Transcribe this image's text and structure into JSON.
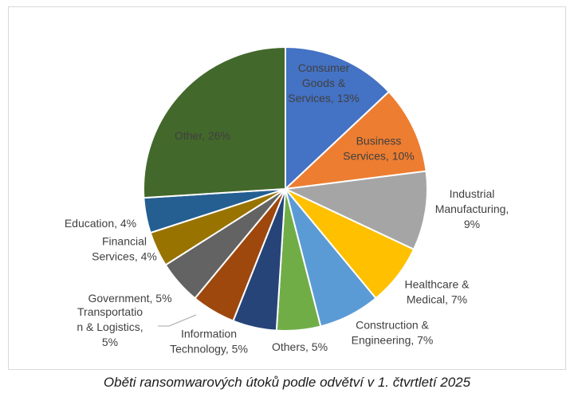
{
  "caption": "Oběti ransomwarových útoků podle odvětví v 1. čtvrtletí 2025",
  "chart_data": {
    "type": "pie",
    "title": "",
    "slices": [
      {
        "name": "Consumer Goods & Services",
        "value": 13,
        "color": "#4472C4",
        "label_lines": [
          "Consumer",
          "Goods &",
          "Services, 13%"
        ]
      },
      {
        "name": "Business Services",
        "value": 10,
        "color": "#ED7D31",
        "label_lines": [
          "Business",
          "Services, 10%"
        ]
      },
      {
        "name": "Industrial Manufacturing",
        "value": 9,
        "color": "#A5A5A5",
        "label_lines": [
          "Industrial",
          "Manufacturing,",
          "9%"
        ]
      },
      {
        "name": "Healthcare & Medical",
        "value": 7,
        "color": "#FFC000",
        "label_lines": [
          "Healthcare &",
          "Medical, 7%"
        ]
      },
      {
        "name": "Construction & Engineering",
        "value": 7,
        "color": "#5B9BD5",
        "label_lines": [
          "Construction &",
          "Engineering, 7%"
        ]
      },
      {
        "name": "Others",
        "value": 5,
        "color": "#70AD47",
        "label_lines": [
          "Others, 5%"
        ]
      },
      {
        "name": "Information Technology",
        "value": 5,
        "color": "#264478",
        "label_lines": [
          "Information",
          "Technology, 5%"
        ]
      },
      {
        "name": "Transportation & Logistics",
        "value": 5,
        "color": "#9E480E",
        "label_lines": [
          "Transportatio",
          "n & Logistics,",
          "5%"
        ]
      },
      {
        "name": "Government",
        "value": 5,
        "color": "#636363",
        "label_lines": [
          "Government, 5%"
        ]
      },
      {
        "name": "Financial Services",
        "value": 4,
        "color": "#997300",
        "label_lines": [
          "Financial",
          "Services, 4%"
        ]
      },
      {
        "name": "Education",
        "value": 4,
        "color": "#255E91",
        "label_lines": [
          "Education, 4%"
        ]
      },
      {
        "name": "Other",
        "value": 26,
        "color": "#43682B",
        "label_lines": [
          "Other, 26%"
        ]
      }
    ]
  }
}
